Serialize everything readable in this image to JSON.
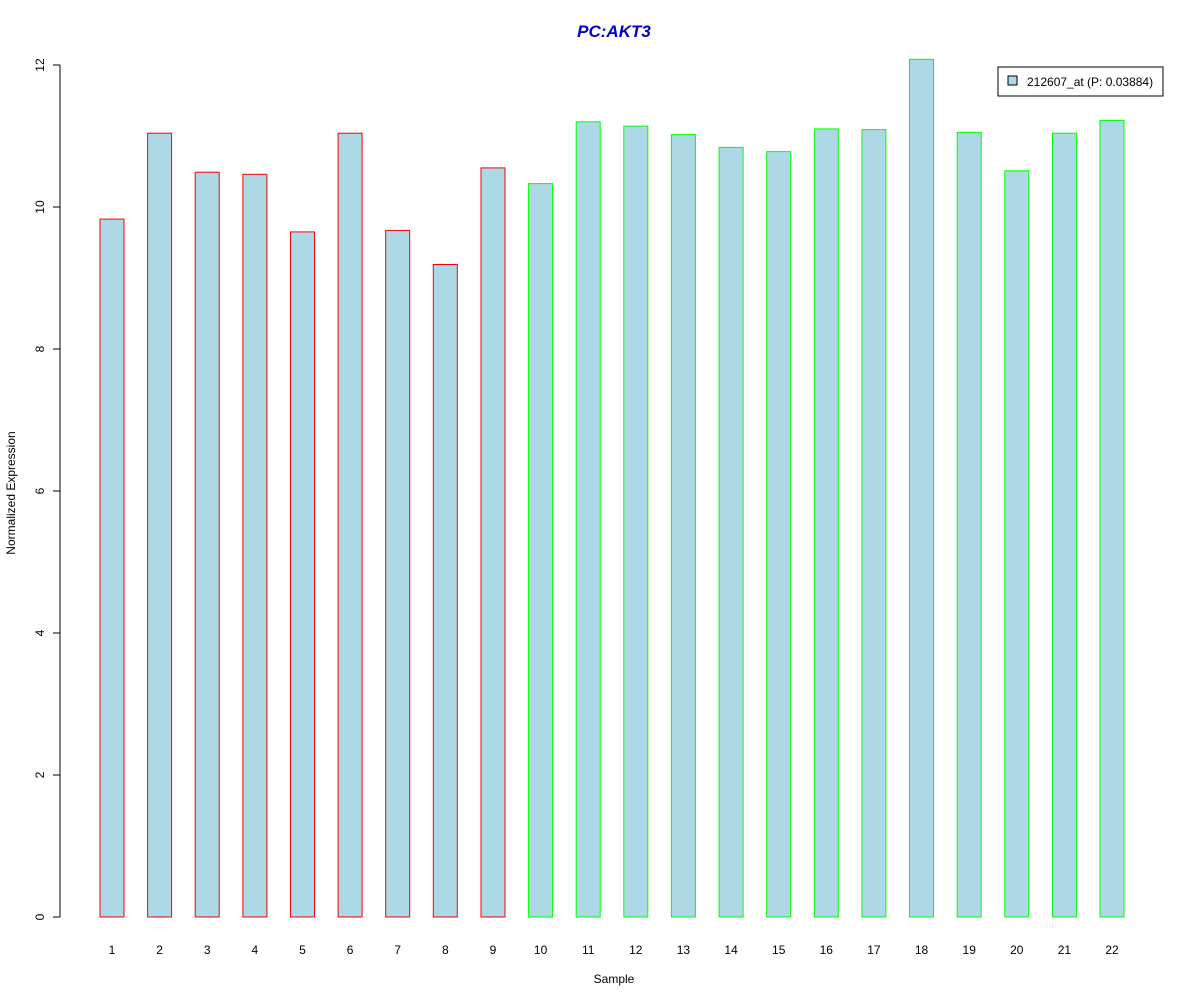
{
  "chart_data": {
    "type": "bar",
    "title": "PC:AKT3",
    "xlabel": "Sample",
    "ylabel": "Normalized Expression",
    "ylim": [
      0,
      12
    ],
    "yticks": [
      "0",
      "2",
      "4",
      "6",
      "8",
      "10",
      "12"
    ],
    "grid": false,
    "categories": [
      "1",
      "2",
      "3",
      "4",
      "5",
      "6",
      "7",
      "8",
      "9",
      "10",
      "11",
      "12",
      "13",
      "14",
      "15",
      "16",
      "17",
      "18",
      "19",
      "20",
      "21",
      "22"
    ],
    "series": [
      {
        "name": "212607_at (P: 0.03884)",
        "values": [
          9.83,
          11.04,
          10.49,
          10.46,
          9.65,
          11.04,
          9.67,
          9.19,
          10.55,
          10.33,
          11.2,
          11.14,
          11.02,
          10.84,
          10.78,
          11.1,
          11.09,
          12.08,
          11.05,
          10.51,
          11.04,
          11.22
        ]
      }
    ],
    "groups": [
      1,
      1,
      1,
      1,
      1,
      1,
      1,
      1,
      1,
      2,
      2,
      2,
      2,
      2,
      2,
      2,
      2,
      2,
      2,
      2,
      2,
      2
    ],
    "legend_position": "top-right",
    "colors": {
      "fill": "#add8e6",
      "group1_border": "#ff0000",
      "group2_border": "#00ff00",
      "title": "#0000cd",
      "axis": "#000000"
    }
  }
}
